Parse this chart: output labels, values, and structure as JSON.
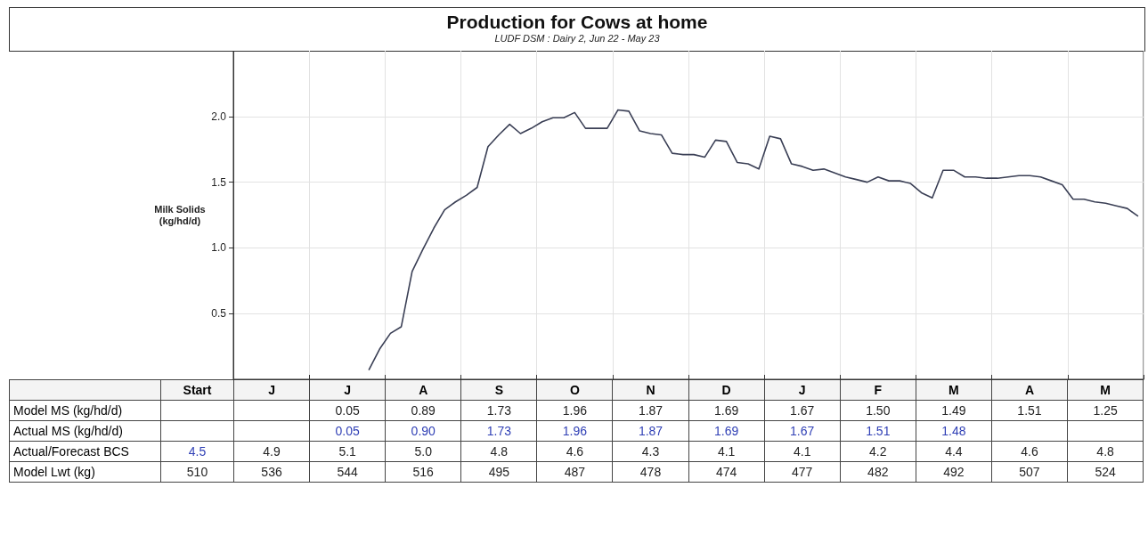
{
  "chart_data": [
    {
      "type": "line",
      "title": "Production for Cows at home",
      "subtitle": "LUDF DSM : Dairy 2, Jun 22 - May 23",
      "ylabel": "Milk Solids\n(kg/hd/d)",
      "color": "#3a3f55",
      "marker": "none",
      "grid": true,
      "tick_labels": "y",
      "categories": [
        null,
        null,
        null,
        null,
        null,
        null,
        null,
        null,
        null,
        null,
        null,
        null,
        null,
        null,
        null,
        null,
        null,
        null,
        null,
        null,
        null,
        null,
        null,
        null,
        null,
        null,
        null,
        null,
        null,
        null,
        null,
        null,
        null,
        null,
        null,
        null,
        null,
        null,
        null,
        null,
        null,
        null,
        null,
        null,
        null,
        null,
        null,
        null,
        null,
        null,
        null,
        null,
        null,
        null,
        null,
        null,
        null,
        null,
        null,
        null,
        null,
        null,
        null,
        null,
        null,
        null,
        null,
        null,
        null,
        null,
        null,
        null,
        null,
        null,
        null,
        null,
        null,
        null,
        null,
        null,
        null,
        null,
        null,
        null
      ],
      "ylim": [
        0,
        2.5
      ],
      "yticks": [
        {
          "value": 0.5,
          "label": "0.5"
        },
        {
          "value": 1.0,
          "label": "1.0"
        },
        {
          "value": 1.5,
          "label": "1.5"
        },
        {
          "value": 2.0,
          "label": "2.0"
        }
      ],
      "values": [
        null,
        null,
        null,
        null,
        null,
        null,
        null,
        null,
        null,
        null,
        null,
        null,
        0.07,
        0.23,
        0.35,
        0.4,
        0.82,
        0.99,
        1.15,
        1.29,
        1.35,
        1.4,
        1.46,
        1.77,
        1.86,
        1.94,
        1.87,
        1.91,
        1.96,
        1.99,
        1.99,
        2.03,
        1.91,
        1.91,
        1.91,
        2.05,
        2.04,
        1.89,
        1.87,
        1.86,
        1.72,
        1.71,
        1.71,
        1.69,
        1.82,
        1.81,
        1.65,
        1.64,
        1.6,
        1.85,
        1.83,
        1.64,
        1.62,
        1.59,
        1.6,
        1.57,
        1.54,
        1.52,
        1.5,
        1.54,
        1.51,
        1.51,
        1.49,
        1.42,
        1.38,
        1.59,
        1.59,
        1.54,
        1.54,
        1.53,
        1.53,
        1.54,
        1.55,
        1.55,
        1.54,
        1.51,
        1.48,
        1.37,
        1.37,
        1.35,
        1.34,
        1.32,
        1.3,
        1.24
      ]
    },
    {
      "type": "other",
      "data_labels": true,
      "categories": [
        "Start",
        "J",
        "J",
        "A",
        "S",
        "O",
        "N",
        "D",
        "J",
        "F",
        "M",
        "A",
        "M"
      ],
      "series": [
        {
          "name": "Model MS (kg/hd/d)",
          "color": "#222222",
          "values": [
            null,
            null,
            0.05,
            0.89,
            1.73,
            1.96,
            1.87,
            1.69,
            1.67,
            1.5,
            1.49,
            1.51,
            1.25
          ],
          "value_labels": [
            null,
            null,
            "0.05",
            "0.89",
            "1.73",
            "1.96",
            "1.87",
            "1.69",
            "1.67",
            "1.50",
            "1.49",
            "1.51",
            "1.25"
          ]
        },
        {
          "name": "Actual MS (kg/hd/d)",
          "colors": [
            null,
            null,
            "#2f3fb5",
            "#2f3fb5",
            "#2f3fb5",
            "#2f3fb5",
            "#2f3fb5",
            "#2f3fb5",
            "#2f3fb5",
            "#2f3fb5",
            "#2f3fb5",
            null,
            null
          ],
          "values": [
            null,
            null,
            0.05,
            0.9,
            1.73,
            1.96,
            1.87,
            1.69,
            1.67,
            1.51,
            1.48,
            null,
            null
          ],
          "value_labels": [
            null,
            null,
            "0.05",
            "0.90",
            "1.73",
            "1.96",
            "1.87",
            "1.69",
            "1.67",
            "1.51",
            "1.48",
            null,
            null
          ]
        },
        {
          "name": "Actual/Forecast BCS",
          "colors": [
            "#2f3fb5",
            "#222222",
            "#222222",
            "#222222",
            "#222222",
            "#222222",
            "#222222",
            "#222222",
            "#222222",
            "#222222",
            "#222222",
            "#222222",
            "#222222"
          ],
          "values": [
            4.5,
            4.9,
            5.1,
            5.0,
            4.8,
            4.6,
            4.3,
            4.1,
            4.1,
            4.2,
            4.4,
            4.6,
            4.8
          ],
          "value_labels": [
            "4.5",
            "4.9",
            "5.1",
            "5.0",
            "4.8",
            "4.6",
            "4.3",
            "4.1",
            "4.1",
            "4.2",
            "4.4",
            "4.6",
            "4.8"
          ]
        },
        {
          "name": "Model Lwt (kg)",
          "color": "#222222",
          "values": [
            510,
            536,
            544,
            516,
            495,
            487,
            478,
            474,
            477,
            482,
            492,
            507,
            524
          ],
          "value_labels": [
            "510",
            "536",
            "544",
            "516",
            "495",
            "487",
            "478",
            "474",
            "477",
            "482",
            "492",
            "507",
            "524"
          ]
        }
      ]
    }
  ]
}
